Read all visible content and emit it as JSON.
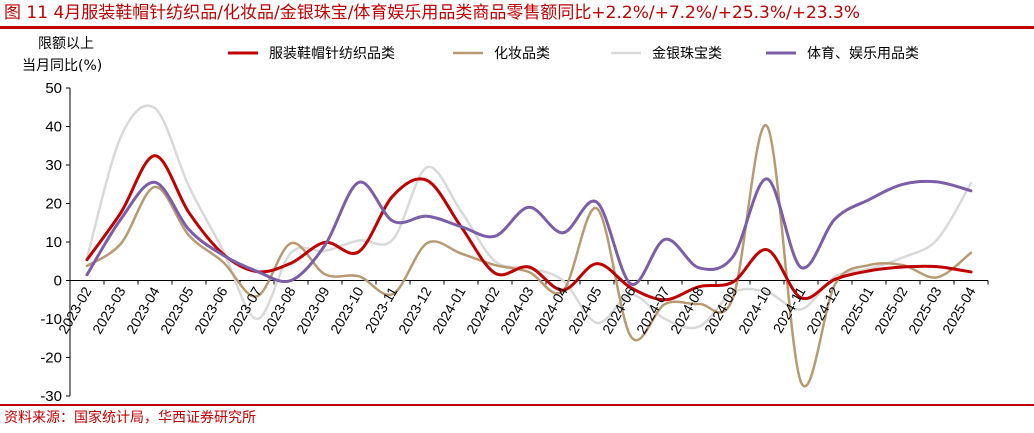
{
  "figure_title": "图 11   4月服装鞋帽针纺织品/化妆品/金银珠宝/体育娱乐用品类商品零售额同比+2.2%/+7.2%/+25.3%/+23.3%",
  "source": "资料来源：国家统计局，华西证券研究所",
  "chart_data": {
    "type": "line",
    "title": "",
    "ylabel_lines": [
      "限额以上",
      "当月同比(%)"
    ],
    "xlabel": "",
    "ylim": [
      -30,
      50
    ],
    "yticks": [
      50,
      40,
      30,
      20,
      10,
      0,
      -10,
      -20,
      -30
    ],
    "grid": false,
    "legend_position": "top",
    "categories": [
      "2023-02",
      "2023-03",
      "2023-04",
      "2023-05",
      "2023-06",
      "2023-07",
      "2023-08",
      "2023-09",
      "2023-10",
      "2023-11",
      "2023-12",
      "2024-01",
      "2024-02",
      "2024-03",
      "2024-04",
      "2024-05",
      "2024-06",
      "2024-07",
      "2024-08",
      "2024-09",
      "2024-10",
      "2024-11",
      "2024-12",
      "2025-01",
      "2025-02",
      "2025-03",
      "2025-04"
    ],
    "series": [
      {
        "name": "服装鞋帽针纺织品类",
        "color": "#c00000",
        "width": 3,
        "values": [
          5.4,
          17.7,
          32.4,
          17.6,
          6.9,
          2.3,
          4.5,
          9.9,
          7.5,
          22.0,
          26.0,
          14.0,
          1.9,
          3.5,
          -2.5,
          4.4,
          -1.9,
          -5.0,
          -1.6,
          -0.4,
          8.0,
          -4.5,
          0.3,
          2.5,
          3.5,
          3.6,
          2.2
        ]
      },
      {
        "name": "化妆品类",
        "color": "#b89a72",
        "width": 2.5,
        "values": [
          3.8,
          9.6,
          24.3,
          11.7,
          4.8,
          -4.1,
          9.7,
          1.6,
          1.1,
          -3.5,
          9.7,
          7.0,
          4.0,
          2.2,
          -2.7,
          18.7,
          -14.6,
          -6.1,
          -6.1,
          -4.5,
          40.1,
          -26.4,
          -1.0,
          4.0,
          4.0,
          0.8,
          7.2
        ]
      },
      {
        "name": "金银珠宝类",
        "color": "#d9d9d9",
        "width": 2.5,
        "values": [
          5.8,
          37.4,
          44.7,
          24.4,
          7.8,
          -10.0,
          7.2,
          7.7,
          10.4,
          10.7,
          29.4,
          18.0,
          5.0,
          3.2,
          0.0,
          -11.0,
          -3.7,
          -10.0,
          -12.0,
          -3.1,
          -3.0,
          -7.5,
          1.0,
          3.0,
          6.0,
          10.6,
          25.3
        ]
      },
      {
        "name": "体育、娱乐用品类",
        "color": "#7b5ea7",
        "width": 3,
        "values": [
          1.5,
          16.0,
          25.5,
          13.2,
          6.6,
          2.4,
          0.0,
          9.2,
          25.5,
          15.4,
          16.7,
          14.0,
          11.5,
          19.0,
          12.4,
          20.3,
          -0.9,
          10.7,
          3.3,
          6.2,
          26.4,
          3.4,
          16.0,
          21.0,
          25.0,
          25.6,
          23.3
        ]
      }
    ]
  }
}
